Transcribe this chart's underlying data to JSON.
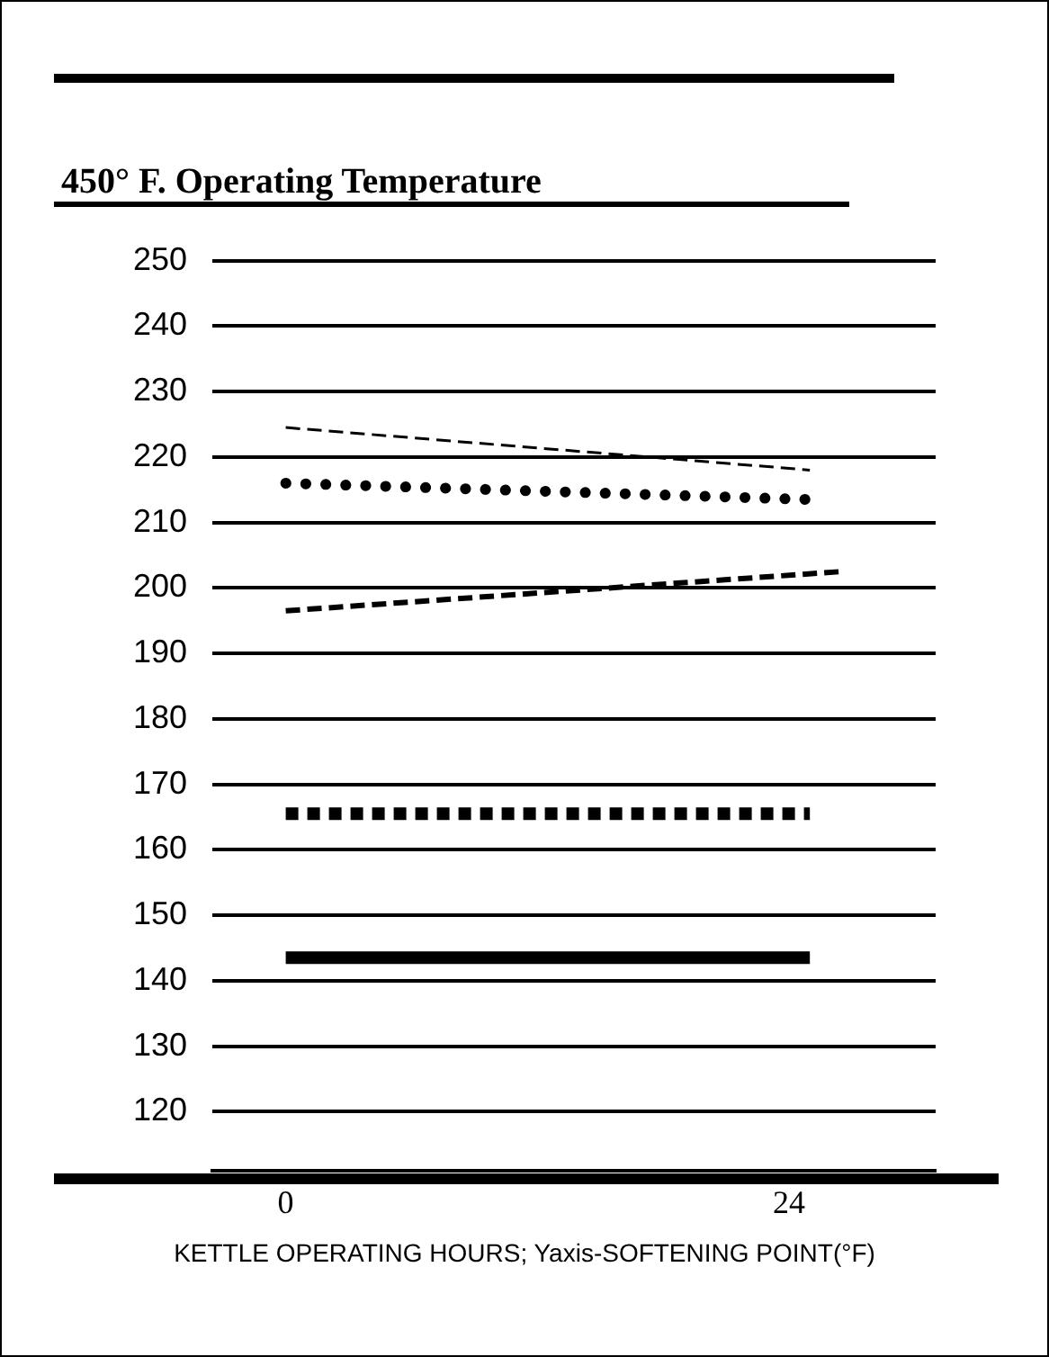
{
  "chart_data": {
    "type": "line",
    "title": "450° F. Operating Temperature",
    "xlabel": "KETTLE OPERATING HOURS; Yaxis-SOFTENING POINT(°F)",
    "xlim": [
      -3.5,
      31
    ],
    "xticks": [
      0,
      24
    ],
    "ylim": [
      111,
      250
    ],
    "yticks": [
      120,
      130,
      140,
      150,
      160,
      170,
      180,
      190,
      200,
      210,
      220,
      230,
      240,
      250
    ],
    "grid": "y",
    "legend": false,
    "series": [
      {
        "color": "#000000",
        "x": [
          0,
          25
        ],
        "values": [
          224.5,
          218
        ],
        "line_style": "dashed"
      },
      {
        "color": "#000000",
        "x": [
          0,
          25
        ],
        "values": [
          216,
          213.5
        ],
        "line_style": "dotted"
      },
      {
        "color": "#000000",
        "x": [
          0,
          26.5
        ],
        "values": [
          196.5,
          202.5
        ],
        "line_style": "dashed"
      },
      {
        "color": "#000000",
        "x": [
          0,
          25
        ],
        "values": [
          165.5,
          165.5
        ],
        "line_style": "dotted"
      },
      {
        "color": "#000000",
        "x": [
          0,
          25
        ],
        "values": [
          143.5,
          143.5
        ],
        "line_style": "solid"
      }
    ]
  }
}
